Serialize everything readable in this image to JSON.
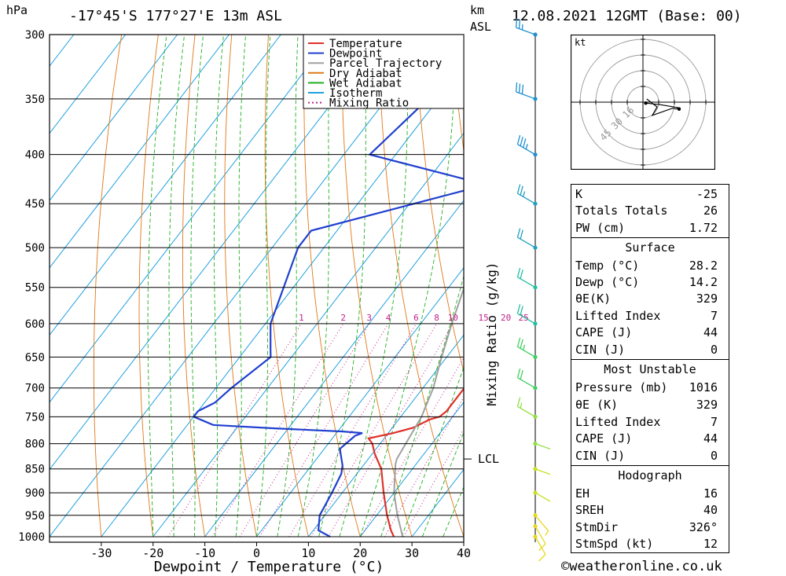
{
  "header": {
    "location": "-17°45'S  177°27'E  13m  ASL",
    "datetime": "12.08.2021  12GMT  (Base: 00)",
    "unit_hpa": "hPa",
    "unit_km": "km",
    "unit_asl": "ASL",
    "watermark": "©weatheronline.co.uk"
  },
  "chart_data": {
    "type": "line",
    "xlabel": "Dewpoint / Temperature (°C)",
    "ylabel": "hPa",
    "y2label": "Mixing Ratio (g/kg)",
    "xlim": [
      -40,
      40
    ],
    "ylim": [
      1000,
      300
    ],
    "y_log": true,
    "x_ticks": [
      "-30",
      "-20",
      "-10",
      "0",
      "10",
      "20",
      "30",
      "40"
    ],
    "x_tick_values": [
      -30,
      -20,
      -10,
      0,
      10,
      20,
      30,
      40
    ],
    "pressure_levels": [
      300,
      350,
      400,
      450,
      500,
      550,
      600,
      650,
      700,
      750,
      800,
      850,
      900,
      950,
      1000
    ],
    "mixing_ratio_labels": [
      "1",
      "2",
      "3",
      "4",
      "6",
      "8",
      "10",
      "15",
      "20",
      "25"
    ],
    "mixing_ratio_values": [
      1,
      2,
      3,
      4,
      6,
      8,
      10,
      15,
      20,
      25
    ],
    "lcl_label": "LCL",
    "lcl_pressure": 830,
    "legend": {
      "placement": "top-right",
      "entries": [
        {
          "label": "Temperature",
          "color": "#e0302a",
          "style": "solid"
        },
        {
          "label": "Dewpoint",
          "color": "#2040d0",
          "style": "solid"
        },
        {
          "label": "Parcel Trajectory",
          "color": "#a0a0a0",
          "style": "solid"
        },
        {
          "label": "Dry Adiabat",
          "color": "#e07818",
          "style": "solid"
        },
        {
          "label": "Wet Adiabat",
          "color": "#20b020",
          "style": "solid"
        },
        {
          "label": "Isotherm",
          "color": "#20a0e0",
          "style": "solid"
        },
        {
          "label": "Mixing Ratio",
          "color": "#c0208a",
          "style": "dotted"
        }
      ]
    },
    "series": [
      {
        "name": "Temperature",
        "color": "#e0302a",
        "points": [
          [
            26.5,
            1000
          ],
          [
            25,
            985
          ],
          [
            22,
            950
          ],
          [
            18,
            900
          ],
          [
            14,
            850
          ],
          [
            10.5,
            820
          ],
          [
            8.5,
            800
          ],
          [
            7,
            790
          ],
          [
            11,
            780
          ],
          [
            14,
            770
          ],
          [
            16,
            755
          ],
          [
            17.5,
            750
          ],
          [
            18,
            740
          ],
          [
            18,
            700
          ],
          [
            18,
            650
          ],
          [
            16,
            600
          ],
          [
            12,
            550
          ],
          [
            8,
            500
          ],
          [
            3,
            475
          ],
          [
            2,
            450
          ],
          [
            -1,
            400
          ],
          [
            -4,
            375
          ],
          [
            -8,
            356
          ],
          [
            -13,
            330
          ],
          [
            -17,
            300
          ]
        ]
      },
      {
        "name": "Dewpoint",
        "color": "#2040d0",
        "points": [
          [
            14.2,
            1000
          ],
          [
            11,
            985
          ],
          [
            9,
            950
          ],
          [
            8,
            900
          ],
          [
            7,
            860
          ],
          [
            6,
            843
          ],
          [
            3,
            810
          ],
          [
            4,
            785
          ],
          [
            5,
            780
          ],
          [
            1,
            777
          ],
          [
            -13,
            771
          ],
          [
            -25,
            765
          ],
          [
            -30,
            750
          ],
          [
            -30,
            740
          ],
          [
            -28,
            725
          ],
          [
            -27,
            700
          ],
          [
            -24,
            650
          ],
          [
            -25,
            640
          ],
          [
            -29,
            600
          ],
          [
            -35,
            500
          ],
          [
            -35,
            480
          ],
          [
            -8,
            430
          ],
          [
            -35,
            400
          ],
          [
            -32,
            350
          ],
          [
            -28,
            300
          ]
        ]
      },
      {
        "name": "Parcel Trajectory",
        "color": "#a0a0a0",
        "points": [
          [
            28.2,
            1000
          ],
          [
            24,
            950
          ],
          [
            20,
            900
          ],
          [
            16,
            840
          ],
          [
            15.5,
            830
          ],
          [
            14,
            750
          ],
          [
            12,
            700
          ],
          [
            9,
            650
          ],
          [
            6,
            600
          ],
          [
            3,
            550
          ],
          [
            -1,
            500
          ],
          [
            -6,
            450
          ],
          [
            -12,
            400
          ],
          [
            -20,
            350
          ],
          [
            -28,
            310
          ]
        ]
      }
    ]
  },
  "wind_barbs": {
    "colors": [
      "#e8d820",
      "#c8e020",
      "#90e040",
      "#40d060",
      "#20c0a0",
      "#20a0c0",
      "#2090d0"
    ],
    "levels": [
      {
        "p": 1000,
        "speed": 10,
        "dir": 150
      },
      {
        "p": 975,
        "speed": 10,
        "dir": 150
      },
      {
        "p": 950,
        "speed": 5,
        "dir": 140
      },
      {
        "p": 900,
        "speed": 5,
        "dir": 120
      },
      {
        "p": 850,
        "speed": 10,
        "dir": 110
      },
      {
        "p": 800,
        "speed": 5,
        "dir": 110
      },
      {
        "p": 750,
        "speed": 15,
        "dir": 300
      },
      {
        "p": 700,
        "speed": 20,
        "dir": 300
      },
      {
        "p": 650,
        "speed": 25,
        "dir": 300
      },
      {
        "p": 600,
        "speed": 20,
        "dir": 300
      },
      {
        "p": 550,
        "speed": 20,
        "dir": 300
      },
      {
        "p": 500,
        "speed": 20,
        "dir": 300
      },
      {
        "p": 450,
        "speed": 25,
        "dir": 300
      },
      {
        "p": 400,
        "speed": 35,
        "dir": 300
      },
      {
        "p": 350,
        "speed": 30,
        "dir": 290
      },
      {
        "p": 300,
        "speed": 25,
        "dir": 290
      }
    ]
  },
  "hodograph": {
    "unit": "kt",
    "rings": [
      "16",
      "30",
      "45"
    ],
    "points": [
      [
        0.9,
        0.3
      ],
      [
        5.5,
        0.8
      ],
      [
        11.5,
        1.8
      ],
      [
        10.5,
        2.2
      ],
      [
        9.5,
        1.9
      ],
      [
        3.0,
        4.2
      ],
      [
        4.5,
        1.5
      ],
      [
        1.2,
        -1.0
      ]
    ]
  },
  "indices": {
    "k_label": "K",
    "k_value": "-25",
    "tt_label": "Totals Totals",
    "tt_value": "26",
    "pw_label": "PW (cm)",
    "pw_value": "1.72",
    "surface_title": "Surface",
    "s_temp_label": "Temp (°C)",
    "s_temp_value": "28.2",
    "s_dewp_label": "Dewp (°C)",
    "s_dewp_value": "14.2",
    "s_theta_label": "θE(K)",
    "s_theta_value": "329",
    "s_li_label": "Lifted Index",
    "s_li_value": "7",
    "s_cape_label": "CAPE (J)",
    "s_cape_value": "44",
    "s_cin_label": "CIN (J)",
    "s_cin_value": "0",
    "mu_title": "Most Unstable",
    "mu_p_label": "Pressure (mb)",
    "mu_p_value": "1016",
    "mu_theta_label": "θE (K)",
    "mu_theta_value": "329",
    "mu_li_label": "Lifted Index",
    "mu_li_value": "7",
    "mu_cape_label": "CAPE (J)",
    "mu_cape_value": "44",
    "mu_cin_label": "CIN (J)",
    "mu_cin_value": "0",
    "hodo_title": "Hodograph",
    "eh_label": "EH",
    "eh_value": "16",
    "srh_label": "SREH",
    "srh_value": "40",
    "dir_label": "StmDir",
    "dir_value": "326°",
    "spd_label": "StmSpd (kt)",
    "spd_value": "12"
  }
}
